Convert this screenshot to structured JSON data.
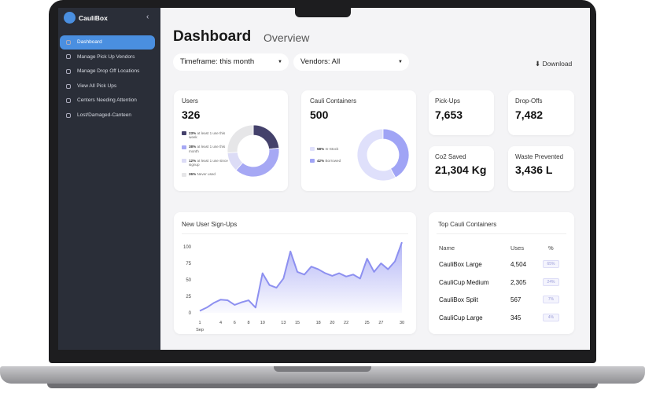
{
  "sidebar": {
    "brand": "CauliBox",
    "nav": [
      "Dashboard",
      "Manage Pick Up Vendors",
      "Manage Drop Off Locations",
      "View All Pick Ups",
      "Centers Needing Attention",
      "Lost/Damaged-Canteen"
    ]
  },
  "header": {
    "title": "Dashboard",
    "subtitle": "Overview"
  },
  "filters": {
    "timeframe": {
      "label": "Timeframe:",
      "value": "this month"
    },
    "vendors": {
      "label": "Vendors:",
      "value": "All"
    },
    "download": "Download"
  },
  "stats": [
    {
      "label": "Pick-Ups",
      "value": "7,653"
    },
    {
      "label": "Drop-Offs",
      "value": "7,482"
    },
    {
      "label": "Co2 Saved",
      "value": "21,304 Kg"
    },
    {
      "label": "Waste Prevented",
      "value": "3,436 L"
    }
  ],
  "chart_data": [
    {
      "type": "donut",
      "title": "Users",
      "total": 326,
      "categories": [
        "at least 1 use this week",
        "at least 1 use this month",
        "at least 1 use since signup",
        "Never used"
      ],
      "values": [
        23,
        38,
        12,
        26
      ],
      "value_labels": [
        "23%",
        "38%",
        "12%",
        "26%"
      ],
      "colors": [
        "#44416b",
        "#a6a8f4",
        "#dcdcf6",
        "#e6e6e8"
      ]
    },
    {
      "type": "donut",
      "title": "Cauli Containers",
      "total": 500,
      "categories": [
        "In-Stock",
        "Borrowed"
      ],
      "values": [
        58,
        42
      ],
      "value_labels": [
        "58%",
        "42%"
      ],
      "colors": [
        "#dfe0fb",
        "#a0a4f5"
      ]
    },
    {
      "type": "line",
      "title": "New User Sign-Ups",
      "x_label": "Sep",
      "x": [
        1,
        2,
        3,
        4,
        5,
        6,
        7,
        8,
        9,
        10,
        11,
        12,
        13,
        14,
        15,
        16,
        17,
        18,
        19,
        20,
        21,
        22,
        23,
        24,
        25,
        26,
        27,
        28,
        29,
        30
      ],
      "values": [
        3,
        8,
        15,
        20,
        19,
        12,
        16,
        19,
        8,
        60,
        42,
        38,
        52,
        93,
        62,
        58,
        70,
        66,
        60,
        56,
        60,
        55,
        58,
        52,
        82,
        62,
        75,
        66,
        78,
        107
      ],
      "color": "#8d90f0",
      "xlim": [
        1,
        30
      ],
      "ylim": [
        0,
        110
      ],
      "xticks": [
        1,
        4,
        6,
        8,
        10,
        13,
        15,
        18,
        20,
        22,
        25,
        27,
        30
      ],
      "yticks": [
        0,
        25,
        50,
        75,
        100
      ]
    }
  ],
  "table": {
    "title": "Top Cauli Containers",
    "columns": [
      "Name",
      "Uses",
      "%"
    ],
    "rows": [
      [
        "CauliBox Large",
        "4,504",
        "65%"
      ],
      [
        "CauliCup Medium",
        "2,305",
        "24%"
      ],
      [
        "CauliBox Split",
        "567",
        "7%"
      ],
      [
        "CauliCup Large",
        "345",
        "4%"
      ]
    ]
  }
}
